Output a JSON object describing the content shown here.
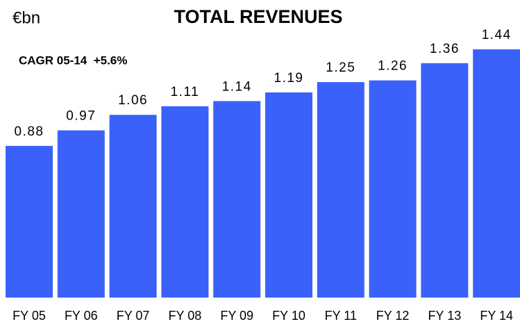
{
  "chart_data": {
    "type": "bar",
    "title": "TOTAL REVENUES",
    "unit_label": "€bn",
    "annotation": "CAGR 05-14  +5.6%",
    "categories": [
      "FY 05",
      "FY 06",
      "FY 07",
      "FY 08",
      "FY 09",
      "FY 10",
      "FY 11",
      "FY 12",
      "FY 13",
      "FY 14"
    ],
    "values": [
      0.88,
      0.97,
      1.06,
      1.11,
      1.14,
      1.19,
      1.25,
      1.26,
      1.36,
      1.44
    ],
    "color": "#3a62fb"
  }
}
